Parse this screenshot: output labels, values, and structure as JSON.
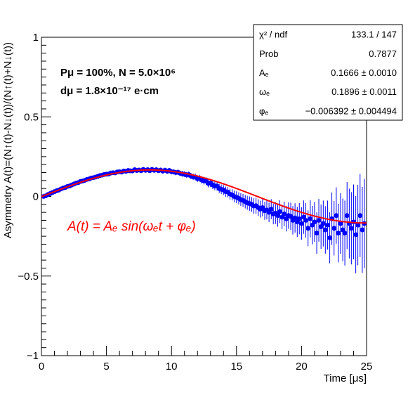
{
  "chart_data": {
    "type": "scatter",
    "xlabel": "Time [μs]",
    "ylabel": "Asymmetry A(t)=(N↑(t)-N↓(t))/(N↑(t)+N↓(t))",
    "xlim": [
      0,
      25
    ],
    "ylim": [
      -1,
      1
    ],
    "x_ticks": [
      0,
      5,
      10,
      15,
      20,
      25
    ],
    "y_ticks": [
      -1,
      -0.5,
      0,
      0.5,
      1
    ],
    "grid": false,
    "annotations": {
      "line1": "Pμ = 100%,  N = 5.0×10⁶",
      "line2": "dμ = 1.8×10⁻¹⁷ e·cm",
      "formula": "A(t) = Aₑ sin(ωₑt + φₑ)"
    },
    "stats_box": {
      "position": "top-right",
      "rows": [
        {
          "label": "χ² / ndf",
          "value": "133.1 / 147"
        },
        {
          "label": "Prob",
          "value": "0.7877"
        },
        {
          "label": "Aₑ",
          "value": "0.1666 ± 0.0010"
        },
        {
          "label": "ωₑ",
          "value": "0.1896 ± 0.0011"
        },
        {
          "label": "φₑ",
          "value": "−0.006392 ± 0.004494"
        }
      ]
    },
    "fit": {
      "color": "#ff0000",
      "A": 0.1666,
      "omega": 0.1896,
      "phi": -0.006392
    },
    "data_color": "#0000ff",
    "series": [
      {
        "points": [
          [
            0.17,
            0.0,
            0.008
          ],
          [
            0.33,
            0.004,
            0.008
          ],
          [
            0.5,
            0.012,
            0.008
          ],
          [
            0.67,
            0.018,
            0.008
          ],
          [
            0.83,
            0.024,
            0.008
          ],
          [
            1.0,
            0.03,
            0.008
          ],
          [
            1.17,
            0.036,
            0.008
          ],
          [
            1.33,
            0.04,
            0.008
          ],
          [
            1.5,
            0.047,
            0.008
          ],
          [
            1.67,
            0.053,
            0.008
          ],
          [
            1.83,
            0.056,
            0.008
          ],
          [
            2.0,
            0.063,
            0.008
          ],
          [
            2.17,
            0.066,
            0.008
          ],
          [
            2.33,
            0.072,
            0.008
          ],
          [
            2.5,
            0.078,
            0.008
          ],
          [
            2.67,
            0.084,
            0.008
          ],
          [
            2.83,
            0.087,
            0.009
          ],
          [
            3.0,
            0.094,
            0.009
          ],
          [
            3.17,
            0.097,
            0.009
          ],
          [
            3.33,
            0.101,
            0.009
          ],
          [
            3.5,
            0.107,
            0.009
          ],
          [
            3.67,
            0.11,
            0.009
          ],
          [
            3.83,
            0.116,
            0.009
          ],
          [
            4.0,
            0.118,
            0.009
          ],
          [
            4.17,
            0.122,
            0.009
          ],
          [
            4.33,
            0.126,
            0.009
          ],
          [
            4.5,
            0.131,
            0.009
          ],
          [
            4.67,
            0.134,
            0.009
          ],
          [
            4.83,
            0.138,
            0.009
          ],
          [
            5.0,
            0.14,
            0.01
          ],
          [
            5.17,
            0.141,
            0.01
          ],
          [
            5.33,
            0.147,
            0.01
          ],
          [
            5.5,
            0.149,
            0.01
          ],
          [
            5.67,
            0.148,
            0.01
          ],
          [
            5.83,
            0.154,
            0.01
          ],
          [
            6.0,
            0.155,
            0.01
          ],
          [
            6.17,
            0.153,
            0.01
          ],
          [
            6.33,
            0.16,
            0.011
          ],
          [
            6.5,
            0.158,
            0.011
          ],
          [
            6.67,
            0.163,
            0.011
          ],
          [
            6.83,
            0.161,
            0.011
          ],
          [
            7.0,
            0.16,
            0.011
          ],
          [
            7.17,
            0.168,
            0.011
          ],
          [
            7.33,
            0.163,
            0.012
          ],
          [
            7.5,
            0.166,
            0.012
          ],
          [
            7.67,
            0.162,
            0.012
          ],
          [
            7.83,
            0.17,
            0.012
          ],
          [
            8.0,
            0.164,
            0.012
          ],
          [
            8.17,
            0.168,
            0.013
          ],
          [
            8.33,
            0.162,
            0.013
          ],
          [
            8.5,
            0.17,
            0.013
          ],
          [
            8.67,
            0.164,
            0.013
          ],
          [
            8.83,
            0.168,
            0.014
          ],
          [
            9.0,
            0.162,
            0.014
          ],
          [
            9.17,
            0.166,
            0.014
          ],
          [
            9.33,
            0.159,
            0.015
          ],
          [
            9.5,
            0.165,
            0.015
          ],
          [
            9.67,
            0.158,
            0.015
          ],
          [
            9.83,
            0.163,
            0.016
          ],
          [
            10.0,
            0.155,
            0.016
          ],
          [
            10.17,
            0.154,
            0.016
          ],
          [
            10.33,
            0.15,
            0.017
          ],
          [
            10.5,
            0.152,
            0.017
          ],
          [
            10.67,
            0.145,
            0.017
          ],
          [
            10.83,
            0.142,
            0.018
          ],
          [
            11.0,
            0.14,
            0.018
          ],
          [
            11.17,
            0.135,
            0.019
          ],
          [
            11.33,
            0.138,
            0.019
          ],
          [
            11.5,
            0.128,
            0.02
          ],
          [
            11.67,
            0.123,
            0.02
          ],
          [
            11.83,
            0.122,
            0.021
          ],
          [
            12.0,
            0.112,
            0.021
          ],
          [
            12.17,
            0.114,
            0.022
          ],
          [
            12.33,
            0.103,
            0.023
          ],
          [
            12.5,
            0.098,
            0.023
          ],
          [
            12.67,
            0.096,
            0.024
          ],
          [
            12.83,
            0.082,
            0.025
          ],
          [
            13.0,
            0.084,
            0.025
          ],
          [
            13.17,
            0.072,
            0.026
          ],
          [
            13.33,
            0.066,
            0.027
          ],
          [
            13.5,
            0.065,
            0.028
          ],
          [
            13.67,
            0.05,
            0.029
          ],
          [
            13.83,
            0.045,
            0.03
          ],
          [
            14.0,
            0.04,
            0.031
          ],
          [
            14.17,
            0.03,
            0.032
          ],
          [
            14.33,
            0.027,
            0.033
          ],
          [
            14.5,
            0.015,
            0.034
          ],
          [
            14.67,
            0.01,
            0.035
          ],
          [
            14.83,
            0.0,
            0.036
          ],
          [
            15.0,
            -0.005,
            0.037
          ],
          [
            15.17,
            -0.012,
            0.038
          ],
          [
            15.33,
            -0.02,
            0.04
          ],
          [
            15.5,
            -0.025,
            0.041
          ],
          [
            15.67,
            -0.033,
            0.042
          ],
          [
            15.83,
            -0.04,
            0.044
          ],
          [
            16.0,
            -0.045,
            0.045
          ],
          [
            16.17,
            -0.05,
            0.047
          ],
          [
            16.33,
            -0.06,
            0.048
          ],
          [
            16.5,
            -0.058,
            0.05
          ],
          [
            16.67,
            -0.07,
            0.052
          ],
          [
            16.83,
            -0.08,
            0.053
          ],
          [
            17.0,
            -0.07,
            0.055
          ],
          [
            17.17,
            -0.09,
            0.057
          ],
          [
            17.33,
            -0.085,
            0.059
          ],
          [
            17.5,
            -0.1,
            0.061
          ],
          [
            17.67,
            -0.08,
            0.063
          ],
          [
            17.83,
            -0.11,
            0.065
          ],
          [
            18.0,
            -0.105,
            0.068
          ],
          [
            18.17,
            -0.12,
            0.07
          ],
          [
            18.33,
            -0.095,
            0.072
          ],
          [
            18.5,
            -0.13,
            0.075
          ],
          [
            18.67,
            -0.11,
            0.077
          ],
          [
            18.83,
            -0.14,
            0.08
          ],
          [
            19.0,
            -0.12,
            0.083
          ],
          [
            19.17,
            -0.125,
            0.086
          ],
          [
            19.33,
            -0.15,
            0.089
          ],
          [
            19.5,
            -0.135,
            0.092
          ],
          [
            19.67,
            -0.16,
            0.095
          ],
          [
            19.83,
            -0.14,
            0.098
          ],
          [
            20.0,
            -0.17,
            0.102
          ],
          [
            20.17,
            -0.13,
            0.105
          ],
          [
            20.33,
            -0.15,
            0.109
          ],
          [
            20.5,
            -0.2,
            0.113
          ],
          [
            20.67,
            -0.14,
            0.117
          ],
          [
            20.83,
            -0.18,
            0.121
          ],
          [
            21.0,
            -0.16,
            0.125
          ],
          [
            21.17,
            -0.23,
            0.13
          ],
          [
            21.33,
            -0.15,
            0.134
          ],
          [
            21.5,
            -0.19,
            0.139
          ],
          [
            21.67,
            -0.17,
            0.144
          ],
          [
            21.83,
            -0.21,
            0.149
          ],
          [
            22.0,
            -0.18,
            0.154
          ],
          [
            22.17,
            -0.26,
            0.16
          ],
          [
            22.33,
            -0.14,
            0.165
          ],
          [
            22.5,
            -0.2,
            0.171
          ],
          [
            22.67,
            -0.12,
            0.177
          ],
          [
            22.83,
            -0.23,
            0.184
          ],
          [
            23.0,
            -0.17,
            0.19
          ],
          [
            23.17,
            -0.21,
            0.197
          ],
          [
            23.33,
            -0.23,
            0.204
          ],
          [
            23.5,
            -0.12,
            0.211
          ],
          [
            23.67,
            -0.17,
            0.219
          ],
          [
            23.83,
            -0.2,
            0.227
          ],
          [
            24.0,
            -0.16,
            0.235
          ],
          [
            24.17,
            -0.24,
            0.243
          ],
          [
            24.33,
            -0.18,
            0.252
          ],
          [
            24.5,
            -0.12,
            0.261
          ],
          [
            24.67,
            -0.21,
            0.27
          ],
          [
            24.83,
            -0.17,
            0.28
          ]
        ]
      }
    ]
  }
}
